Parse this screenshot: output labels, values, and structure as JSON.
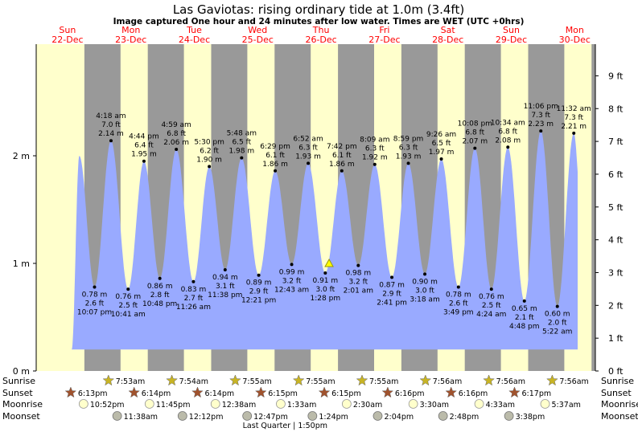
{
  "header": {
    "title": "Las Gaviotas: rising  ordinary tide at 1.0m (3.4ft)",
    "subtitle": "Image captured One hour and 24 minutes after low water. Times are WET (UTC +0hrs)"
  },
  "chart_data": {
    "type": "area",
    "title": "Las Gaviotas: rising  ordinary tide at 1.0m (3.4ft)",
    "subtitle": "Image captured One hour and 24 minutes after low water. Times are WET (UTC +0hrs)",
    "days": [
      {
        "dow": "Sun",
        "date": "22-Dec"
      },
      {
        "dow": "Mon",
        "date": "23-Dec"
      },
      {
        "dow": "Tue",
        "date": "24-Dec"
      },
      {
        "dow": "Wed",
        "date": "25-Dec"
      },
      {
        "dow": "Thu",
        "date": "26-Dec"
      },
      {
        "dow": "Fri",
        "date": "27-Dec"
      },
      {
        "dow": "Sat",
        "date": "28-Dec"
      },
      {
        "dow": "Sun",
        "date": "29-Dec"
      },
      {
        "dow": "Mon",
        "date": "30-Dec"
      }
    ],
    "y_left_ticks": [
      {
        "value": 0,
        "label": "0 m"
      },
      {
        "value": 1,
        "label": "1 m"
      },
      {
        "value": 2,
        "label": "2 m"
      }
    ],
    "y_right_ticks": [
      {
        "value": 0,
        "label": "0 ft"
      },
      {
        "value": 1,
        "label": "1 ft"
      },
      {
        "value": 2,
        "label": "2 ft"
      },
      {
        "value": 3,
        "label": "3 ft"
      },
      {
        "value": 4,
        "label": "4 ft"
      },
      {
        "value": 5,
        "label": "5 ft"
      },
      {
        "value": 6,
        "label": "6 ft"
      },
      {
        "value": 7,
        "label": "7 ft"
      },
      {
        "value": 8,
        "label": "8 ft"
      },
      {
        "value": 9,
        "label": "9 ft"
      }
    ],
    "ylim_m": [
      0,
      2.95
    ],
    "xlim_days": [
      -0.05,
      8.6
    ],
    "colors": {
      "day": "#ffffcc",
      "night": "#999999",
      "tide": "#99aaff",
      "day_label": "#ff0000",
      "sun_star": "#c8b424",
      "sunset_star": "#a0522d",
      "moonrise": "#ffffcc",
      "moonset": "#bbbbaa"
    },
    "tides": [
      {
        "kind": "low",
        "day": 0.92,
        "m": "0.78 m",
        "ft": "2.6 ft",
        "time": "10:07 pm",
        "v": 0.78
      },
      {
        "kind": "high",
        "day": 1.18,
        "m": "2.14 m",
        "ft": "7.0 ft",
        "time": "4:18 am",
        "v": 2.14
      },
      {
        "kind": "low",
        "day": 1.45,
        "m": "0.76 m",
        "ft": "2.5 ft",
        "time": "10:41 am",
        "v": 0.76
      },
      {
        "kind": "high",
        "day": 1.7,
        "m": "1.95 m",
        "ft": "6.4 ft",
        "time": "4:44 pm",
        "v": 1.95
      },
      {
        "kind": "low",
        "day": 1.95,
        "m": "0.86 m",
        "ft": "2.8 ft",
        "time": "10:48 pm",
        "v": 0.86
      },
      {
        "kind": "high",
        "day": 2.21,
        "m": "2.06 m",
        "ft": "6.8 ft",
        "time": "4:59 am",
        "v": 2.06
      },
      {
        "kind": "low",
        "day": 2.48,
        "m": "0.83 m",
        "ft": "2.7 ft",
        "time": "11:26 am",
        "v": 0.83
      },
      {
        "kind": "high",
        "day": 2.73,
        "m": "1.90 m",
        "ft": "6.2 ft",
        "time": "5:30 pm",
        "v": 1.9
      },
      {
        "kind": "low",
        "day": 2.98,
        "m": "0.94 m",
        "ft": "3.1 ft",
        "time": "11:38 pm",
        "v": 0.94
      },
      {
        "kind": "high",
        "day": 3.24,
        "m": "1.98 m",
        "ft": "6.5 ft",
        "time": "5:48 am",
        "v": 1.98
      },
      {
        "kind": "low",
        "day": 3.51,
        "m": "0.89 m",
        "ft": "2.9 ft",
        "time": "12:21 pm",
        "v": 0.89
      },
      {
        "kind": "high",
        "day": 3.77,
        "m": "1.86 m",
        "ft": "6.1 ft",
        "time": "6:29 pm",
        "v": 1.86
      },
      {
        "kind": "low",
        "day": 4.03,
        "m": "0.99 m",
        "ft": "3.2 ft",
        "time": "12:43 am",
        "v": 0.99
      },
      {
        "kind": "high",
        "day": 4.29,
        "m": "1.93 m",
        "ft": "6.3 ft",
        "time": "6:52 am",
        "v": 1.93
      },
      {
        "kind": "low",
        "day": 4.56,
        "m": "0.91 m",
        "ft": "3.0 ft",
        "time": "1:28 pm",
        "v": 0.91
      },
      {
        "kind": "high",
        "day": 4.82,
        "m": "1.86 m",
        "ft": "6.1 ft",
        "time": "7:42 pm",
        "v": 1.86
      },
      {
        "kind": "low",
        "day": 5.08,
        "m": "0.98 m",
        "ft": "3.2 ft",
        "time": "2:01 am",
        "v": 0.98
      },
      {
        "kind": "high",
        "day": 5.34,
        "m": "1.92 m",
        "ft": "6.3 ft",
        "time": "8:09 am",
        "v": 1.92
      },
      {
        "kind": "low",
        "day": 5.61,
        "m": "0.87 m",
        "ft": "2.9 ft",
        "time": "2:41 pm",
        "v": 0.87
      },
      {
        "kind": "high",
        "day": 5.87,
        "m": "1.93 m",
        "ft": "6.3 ft",
        "time": "8:59 pm",
        "v": 1.93
      },
      {
        "kind": "low",
        "day": 6.13,
        "m": "0.90 m",
        "ft": "3.0 ft",
        "time": "3:18 am",
        "v": 0.9
      },
      {
        "kind": "high",
        "day": 6.39,
        "m": "1.97 m",
        "ft": "6.5 ft",
        "time": "9:26 am",
        "v": 1.97
      },
      {
        "kind": "low",
        "day": 6.66,
        "m": "0.78 m",
        "ft": "2.6 ft",
        "time": "3:49 pm",
        "v": 0.78
      },
      {
        "kind": "high",
        "day": 6.92,
        "m": "2.07 m",
        "ft": "6.8 ft",
        "time": "10:08 pm",
        "v": 2.07
      },
      {
        "kind": "low",
        "day": 7.18,
        "m": "0.76 m",
        "ft": "2.5 ft",
        "time": "4:24 am",
        "v": 0.76
      },
      {
        "kind": "high",
        "day": 7.44,
        "m": "2.08 m",
        "ft": "6.8 ft",
        "time": "10:34 am",
        "v": 2.08
      },
      {
        "kind": "low",
        "day": 7.7,
        "m": "0.65 m",
        "ft": "2.1 ft",
        "time": "4:48 pm",
        "v": 0.65
      },
      {
        "kind": "high",
        "day": 7.96,
        "m": "2.23 m",
        "ft": "7.3 ft",
        "time": "11:06 pm",
        "v": 2.23
      },
      {
        "kind": "low",
        "day": 8.22,
        "m": "0.60 m",
        "ft": "2.0 ft",
        "time": "5:22 am",
        "v": 0.6
      },
      {
        "kind": "high",
        "day": 8.48,
        "m": "2.21 m",
        "ft": "7.3 ft",
        "time": "11:32 am",
        "v": 2.21
      }
    ],
    "start_curve_peak": {
      "day": 0.68,
      "v": 2.0
    },
    "capture_marker": {
      "day": 4.62,
      "v": 1.0
    },
    "sunrise": [
      {
        "day": 1.33,
        "time": "7:53am"
      },
      {
        "day": 2.33,
        "time": "7:54am"
      },
      {
        "day": 3.33,
        "time": "7:55am"
      },
      {
        "day": 4.33,
        "time": "7:55am"
      },
      {
        "day": 5.33,
        "time": "7:55am"
      },
      {
        "day": 6.33,
        "time": "7:56am"
      },
      {
        "day": 7.33,
        "time": "7:56am"
      },
      {
        "day": 8.33,
        "time": "7:56am"
      }
    ],
    "sunset": [
      {
        "day": 0.76,
        "time": "6:13pm"
      },
      {
        "day": 1.76,
        "time": "6:14pm"
      },
      {
        "day": 2.76,
        "time": "6:14pm"
      },
      {
        "day": 3.76,
        "time": "6:15pm"
      },
      {
        "day": 4.76,
        "time": "6:15pm"
      },
      {
        "day": 5.76,
        "time": "6:16pm"
      },
      {
        "day": 6.76,
        "time": "6:16pm"
      },
      {
        "day": 7.76,
        "time": "6:17pm"
      }
    ],
    "moonrise": [
      {
        "day": 0.95,
        "time": "10:52pm"
      },
      {
        "day": 1.99,
        "time": "11:45pm"
      },
      {
        "day": 3.03,
        "time": "12:38am"
      },
      {
        "day": 4.06,
        "time": "1:33am"
      },
      {
        "day": 5.1,
        "time": "2:30am"
      },
      {
        "day": 6.15,
        "time": "3:30am"
      },
      {
        "day": 7.19,
        "time": "4:33am"
      },
      {
        "day": 8.23,
        "time": "5:37am"
      }
    ],
    "moonset": [
      {
        "day": 1.48,
        "time": "11:38am"
      },
      {
        "day": 2.51,
        "time": "12:12pm"
      },
      {
        "day": 3.53,
        "time": "12:47pm"
      },
      {
        "day": 4.56,
        "time": "1:24pm"
      },
      {
        "day": 5.59,
        "time": "2:04pm"
      },
      {
        "day": 6.62,
        "time": "2:48pm"
      },
      {
        "day": 7.66,
        "time": "3:38pm"
      }
    ],
    "moon_phase": {
      "day": 4.56,
      "text": "Last Quarter | 1:50pm"
    },
    "row_labels": {
      "sunrise": "Sunrise",
      "sunset": "Sunset",
      "moonrise": "Moonrise",
      "moonset": "Moonset"
    }
  }
}
